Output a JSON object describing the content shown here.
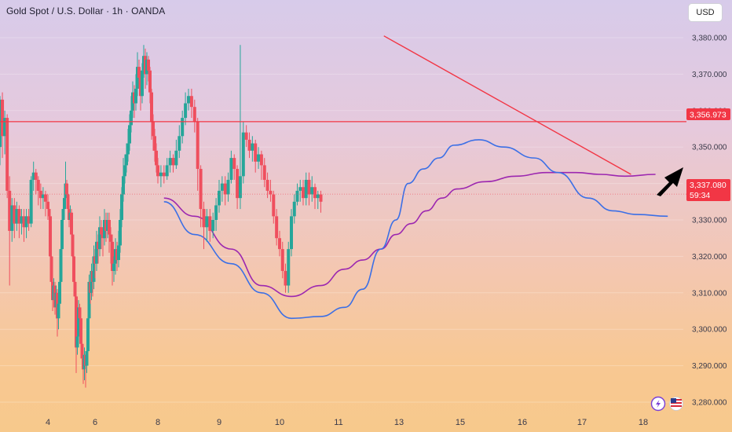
{
  "header": {
    "title": "Gold Spot / U.S. Dollar · 1h · OANDA",
    "currency": "USD"
  },
  "price_tags": {
    "resistance": "3,356.973",
    "last": "3,337.080",
    "countdown": "59:34"
  },
  "colors": {
    "up": "#26a69a",
    "down": "#ef4f5e",
    "resistance": "#f23645",
    "trendline": "#f23645",
    "ma_fast": "#3b6fe6",
    "ma_slow": "#9c27b0",
    "arrow": "#000000"
  },
  "icons": [
    "lightning-icon",
    "us-flag-icon"
  ],
  "chart_data": {
    "type": "candlestick",
    "title": "Gold Spot / U.S. Dollar · 1h · OANDA",
    "y_ticks": [
      "3,380.000",
      "3,370.000",
      "3,360.000",
      "3,350.000",
      "3,340.000",
      "3,330.000",
      "3,320.000",
      "3,310.000",
      "3,300.000",
      "3,290.000",
      "3,280.000"
    ],
    "y_tick_values": [
      3380,
      3370,
      3360,
      3350,
      3340,
      3330,
      3320,
      3310,
      3300,
      3290,
      3280
    ],
    "x_ticks": [
      "4",
      "6",
      "8",
      "9",
      "10",
      "11",
      "13",
      "15",
      "16",
      "17",
      "18"
    ],
    "ylim": [
      3275,
      3386
    ],
    "resistance_level": 3356.973,
    "last_price": 3337.08,
    "trendline": [
      [
        12.5,
        3380.5
      ],
      [
        17.8,
        3342.5
      ]
    ],
    "ma_fast": [
      [
        8.1,
        3335
      ],
      [
        8.6,
        3326
      ],
      [
        9.2,
        3318
      ],
      [
        9.7,
        3310
      ],
      [
        10.2,
        3303
      ],
      [
        10.7,
        3303.5
      ],
      [
        11.2,
        3306
      ],
      [
        11.8,
        3311
      ],
      [
        12.4,
        3322
      ],
      [
        12.9,
        3330
      ],
      [
        13.3,
        3340
      ],
      [
        13.8,
        3344
      ],
      [
        14.3,
        3347
      ],
      [
        14.8,
        3350.5
      ],
      [
        15.3,
        3352
      ],
      [
        15.7,
        3350
      ],
      [
        16.2,
        3347
      ],
      [
        16.6,
        3343
      ],
      [
        17.1,
        3336
      ],
      [
        17.5,
        3332.5
      ],
      [
        17.9,
        3331.5
      ],
      [
        18.4,
        3331
      ]
    ],
    "ma_slow": [
      [
        8.1,
        3336
      ],
      [
        8.6,
        3331
      ],
      [
        9.2,
        3322
      ],
      [
        9.7,
        3312
      ],
      [
        10.2,
        3309
      ],
      [
        10.7,
        3312
      ],
      [
        11.2,
        3316.5
      ],
      [
        11.8,
        3319
      ],
      [
        12.4,
        3322
      ],
      [
        12.9,
        3326
      ],
      [
        13.4,
        3329
      ],
      [
        13.9,
        3332.5
      ],
      [
        14.4,
        3336
      ],
      [
        14.9,
        3338.5
      ],
      [
        15.4,
        3340.5
      ],
      [
        15.9,
        3342
      ],
      [
        16.4,
        3343
      ],
      [
        16.9,
        3343
      ],
      [
        17.3,
        3342.5
      ],
      [
        17.7,
        3342
      ],
      [
        18.2,
        3342.5
      ]
    ],
    "candles": [
      [
        3.0,
        3350,
        3363,
        3364,
        3345
      ],
      [
        3.05,
        3363,
        3353,
        3365,
        3347
      ],
      [
        3.1,
        3353,
        3358,
        3360,
        3348
      ],
      [
        3.15,
        3358,
        3338,
        3359,
        3336
      ],
      [
        3.2,
        3338,
        3327,
        3342,
        3312
      ],
      [
        3.25,
        3327,
        3334,
        3336,
        3324
      ],
      [
        3.3,
        3334,
        3329,
        3336,
        3325
      ],
      [
        3.35,
        3329,
        3333,
        3335,
        3327
      ],
      [
        3.4,
        3333,
        3329,
        3334,
        3325
      ],
      [
        3.45,
        3329,
        3331,
        3333,
        3326
      ],
      [
        3.5,
        3331,
        3328,
        3333,
        3324
      ],
      [
        3.55,
        3328,
        3331,
        3333,
        3325
      ],
      [
        3.6,
        3331,
        3329,
        3333,
        3327
      ],
      [
        3.65,
        3329,
        3341,
        3342,
        3328
      ],
      [
        3.7,
        3341,
        3343,
        3346,
        3338
      ],
      [
        3.75,
        3343,
        3341,
        3344,
        3337
      ],
      [
        3.8,
        3341,
        3338,
        3342,
        3334
      ],
      [
        3.85,
        3338,
        3336,
        3340,
        3333
      ],
      [
        3.9,
        3336,
        3337,
        3339,
        3333
      ],
      [
        3.95,
        3337,
        3335,
        3338,
        3331
      ],
      [
        4.0,
        3335,
        3333,
        3337,
        3330
      ],
      [
        4.05,
        3333,
        3331,
        3334,
        3327
      ],
      [
        4.1,
        3331,
        3320,
        3332,
        3318
      ],
      [
        4.15,
        3320,
        3313,
        3322,
        3310
      ],
      [
        4.2,
        3313,
        3308,
        3315,
        3305
      ],
      [
        4.25,
        3308,
        3312,
        3314,
        3306
      ],
      [
        4.3,
        3312,
        3306,
        3313,
        3304
      ],
      [
        4.35,
        3306,
        3310,
        3312,
        3303
      ],
      [
        4.4,
        3310,
        3303,
        3311,
        3298
      ],
      [
        4.45,
        3303,
        3307,
        3309,
        3300
      ],
      [
        4.5,
        3307,
        3313,
        3315,
        3305
      ],
      [
        4.55,
        3313,
        3322,
        3324,
        3312
      ],
      [
        4.6,
        3322,
        3330,
        3332,
        3321
      ],
      [
        4.65,
        3330,
        3333,
        3336,
        3329
      ],
      [
        4.7,
        3333,
        3336,
        3338,
        3331
      ],
      [
        4.75,
        3336,
        3340,
        3346,
        3334
      ],
      [
        4.8,
        3340,
        3337,
        3341,
        3334
      ],
      [
        4.85,
        3337,
        3333,
        3338,
        3331
      ],
      [
        4.9,
        3333,
        3330,
        3335,
        3328
      ],
      [
        4.95,
        3330,
        3332,
        3334,
        3328
      ],
      [
        5.0,
        3332,
        3326,
        3333,
        3323
      ],
      [
        5.05,
        3326,
        3320,
        3327,
        3318
      ],
      [
        5.1,
        3320,
        3313,
        3321,
        3312
      ],
      [
        5.15,
        3313,
        3309,
        3315,
        3307
      ],
      [
        5.2,
        3309,
        3295,
        3311,
        3288
      ],
      [
        5.25,
        3295,
        3298,
        3301,
        3293
      ],
      [
        5.3,
        3298,
        3306,
        3308,
        3296
      ],
      [
        5.35,
        3306,
        3303,
        3307,
        3300
      ],
      [
        5.4,
        3303,
        3296,
        3305,
        3292
      ],
      [
        5.45,
        3296,
        3292,
        3298,
        3289
      ],
      [
        5.5,
        3292,
        3289,
        3294,
        3285
      ],
      [
        5.55,
        3289,
        3293,
        3295,
        3286
      ],
      [
        5.6,
        3293,
        3290,
        3294,
        3284
      ],
      [
        5.65,
        3290,
        3294,
        3300,
        3288
      ],
      [
        5.7,
        3294,
        3303,
        3306,
        3292
      ],
      [
        5.75,
        3303,
        3313,
        3315,
        3301
      ],
      [
        5.8,
        3313,
        3310,
        3315,
        3307
      ],
      [
        5.85,
        3310,
        3316,
        3318,
        3308
      ],
      [
        5.9,
        3316,
        3313,
        3318,
        3309
      ],
      [
        5.95,
        3313,
        3320,
        3323,
        3311
      ],
      [
        6.0,
        3320,
        3318,
        3322,
        3314
      ],
      [
        6.05,
        3318,
        3324,
        3327,
        3316
      ],
      [
        6.1,
        3324,
        3322,
        3326,
        3318
      ],
      [
        6.15,
        3322,
        3328,
        3331,
        3320
      ],
      [
        6.2,
        3328,
        3326,
        3330,
        3322
      ],
      [
        6.25,
        3326,
        3325,
        3328,
        3320
      ],
      [
        6.3,
        3325,
        3330,
        3333,
        3323
      ],
      [
        6.35,
        3330,
        3327,
        3332,
        3324
      ],
      [
        6.4,
        3327,
        3330,
        3332,
        3325
      ],
      [
        6.45,
        3330,
        3326,
        3332,
        3321
      ],
      [
        6.5,
        3326,
        3324,
        3328,
        3318
      ],
      [
        6.55,
        3324,
        3316,
        3326,
        3312
      ],
      [
        6.6,
        3316,
        3318,
        3320,
        3313
      ],
      [
        6.65,
        3318,
        3322,
        3325,
        3315
      ],
      [
        6.7,
        3322,
        3319,
        3324,
        3316
      ],
      [
        6.75,
        3319,
        3323,
        3327,
        3317
      ],
      [
        6.8,
        3323,
        3330,
        3333,
        3321
      ],
      [
        6.85,
        3330,
        3337,
        3339,
        3328
      ],
      [
        6.9,
        3337,
        3342,
        3347,
        3335
      ],
      [
        6.95,
        3342,
        3345,
        3348,
        3340
      ],
      [
        7.0,
        3345,
        3348,
        3351,
        3343
      ],
      [
        7.05,
        3348,
        3351,
        3355,
        3346
      ],
      [
        7.1,
        3351,
        3356,
        3359,
        3349
      ],
      [
        7.15,
        3356,
        3360,
        3364,
        3354
      ],
      [
        7.2,
        3360,
        3365,
        3368,
        3358
      ],
      [
        7.25,
        3365,
        3362,
        3367,
        3358
      ],
      [
        7.3,
        3362,
        3366,
        3370,
        3360
      ],
      [
        7.35,
        3366,
        3372,
        3376,
        3364
      ],
      [
        7.4,
        3372,
        3369,
        3374,
        3366
      ],
      [
        7.45,
        3369,
        3364,
        3371,
        3360
      ],
      [
        7.5,
        3364,
        3371,
        3373,
        3362
      ],
      [
        7.55,
        3371,
        3375,
        3378,
        3369
      ],
      [
        7.6,
        3375,
        3370,
        3377,
        3366
      ],
      [
        7.65,
        3370,
        3374,
        3376,
        3367
      ],
      [
        7.7,
        3374,
        3371,
        3375,
        3368
      ],
      [
        7.75,
        3371,
        3365,
        3372,
        3362
      ],
      [
        7.8,
        3365,
        3357,
        3366,
        3352
      ],
      [
        7.85,
        3357,
        3353,
        3359,
        3349
      ],
      [
        7.9,
        3353,
        3349,
        3355,
        3346
      ],
      [
        7.95,
        3349,
        3345,
        3351,
        3343
      ],
      [
        8.0,
        3345,
        3342,
        3347,
        3340
      ],
      [
        8.05,
        3342,
        3343,
        3345,
        3339
      ],
      [
        8.1,
        3343,
        3342,
        3345,
        3340
      ],
      [
        8.15,
        3342,
        3345,
        3347,
        3341
      ],
      [
        8.2,
        3345,
        3347,
        3349,
        3343
      ],
      [
        8.25,
        3347,
        3345,
        3348,
        3343
      ],
      [
        8.3,
        3345,
        3349,
        3352,
        3344
      ],
      [
        8.35,
        3349,
        3353,
        3356,
        3347
      ],
      [
        8.4,
        3353,
        3358,
        3360,
        3351
      ],
      [
        8.45,
        3358,
        3362,
        3365,
        3356
      ],
      [
        8.5,
        3362,
        3364,
        3366,
        3360
      ],
      [
        8.55,
        3364,
        3361,
        3366,
        3358
      ],
      [
        8.6,
        3361,
        3357,
        3363,
        3354
      ],
      [
        8.65,
        3357,
        3344,
        3358,
        3338
      ],
      [
        8.7,
        3344,
        3333,
        3345,
        3328
      ],
      [
        8.75,
        3333,
        3328,
        3335,
        3322
      ],
      [
        8.8,
        3328,
        3331,
        3333,
        3324
      ],
      [
        8.85,
        3331,
        3327,
        3333,
        3324
      ],
      [
        8.9,
        3327,
        3330,
        3332,
        3325
      ],
      [
        8.95,
        3330,
        3334,
        3336,
        3327
      ],
      [
        9.0,
        3334,
        3338,
        3341,
        3332
      ],
      [
        9.05,
        3338,
        3340,
        3342,
        3335
      ],
      [
        9.1,
        3340,
        3337,
        3342,
        3334
      ],
      [
        9.15,
        3337,
        3341,
        3343,
        3335
      ],
      [
        9.2,
        3341,
        3347,
        3349,
        3340
      ],
      [
        9.25,
        3347,
        3344,
        3348,
        3341
      ],
      [
        9.3,
        3344,
        3336,
        3345,
        3333
      ],
      [
        9.35,
        3336,
        3342,
        3378,
        3333
      ],
      [
        9.4,
        3342,
        3354,
        3357,
        3340
      ],
      [
        9.45,
        3354,
        3352,
        3356,
        3350
      ],
      [
        9.5,
        3352,
        3349,
        3354,
        3347
      ],
      [
        9.55,
        3349,
        3351,
        3353,
        3346
      ],
      [
        9.6,
        3351,
        3346,
        3352,
        3343
      ],
      [
        9.65,
        3346,
        3348,
        3350,
        3344
      ],
      [
        9.7,
        3348,
        3345,
        3349,
        3341
      ],
      [
        9.75,
        3345,
        3341,
        3347,
        3339
      ],
      [
        9.8,
        3341,
        3338,
        3343,
        3336
      ],
      [
        9.85,
        3338,
        3337,
        3341,
        3335
      ],
      [
        9.9,
        3337,
        3331,
        3338,
        3329
      ],
      [
        9.95,
        3331,
        3325,
        3333,
        3323
      ],
      [
        10.0,
        3325,
        3322,
        3327,
        3320
      ],
      [
        10.05,
        3322,
        3316,
        3324,
        3314
      ],
      [
        10.1,
        3316,
        3312,
        3318,
        3310
      ],
      [
        10.15,
        3312,
        3322,
        3324,
        3310
      ],
      [
        10.2,
        3322,
        3331,
        3333,
        3320
      ],
      [
        10.25,
        3331,
        3335,
        3337,
        3329
      ],
      [
        10.3,
        3335,
        3338,
        3340,
        3334
      ],
      [
        10.35,
        3338,
        3339,
        3341,
        3335
      ],
      [
        10.4,
        3339,
        3336,
        3341,
        3334
      ],
      [
        10.45,
        3336,
        3341,
        3343,
        3334
      ],
      [
        10.5,
        3341,
        3337,
        3343,
        3334
      ],
      [
        10.55,
        3337,
        3339,
        3342,
        3335
      ],
      [
        10.6,
        3339,
        3336,
        3340,
        3333
      ],
      [
        10.65,
        3336,
        3337,
        3338,
        3333
      ],
      [
        10.7,
        3337,
        3335,
        3338,
        3332
      ]
    ]
  }
}
